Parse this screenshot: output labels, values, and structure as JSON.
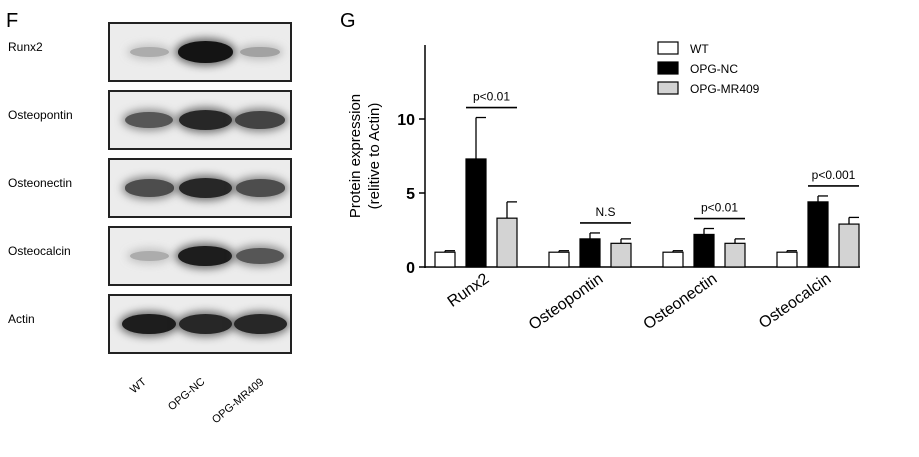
{
  "panel_f": {
    "letter": "F",
    "blots": [
      {
        "label": "Runx2",
        "intensities": [
          0.15,
          0.95,
          0.2
        ]
      },
      {
        "label": "Osteopontin",
        "intensities": [
          0.6,
          0.85,
          0.7
        ]
      },
      {
        "label": "Osteonectin",
        "intensities": [
          0.65,
          0.85,
          0.65
        ]
      },
      {
        "label": "Osteocalcin",
        "intensities": [
          0.15,
          0.9,
          0.6
        ]
      },
      {
        "label": "Actin",
        "intensities": [
          0.9,
          0.85,
          0.85
        ]
      }
    ],
    "lanes": [
      "WT",
      "OPG-NC",
      "OPG-MR409"
    ]
  },
  "panel_g": {
    "letter": "G",
    "chart_data": {
      "type": "bar",
      "categories": [
        "Runx2",
        "Osteopontin",
        "Osteonectin",
        "Osteocalcin"
      ],
      "ylabel_line1": "Protein expression",
      "ylabel_line2": "(relitive to Actin)",
      "ylim": [
        0,
        15
      ],
      "yticks": [
        0,
        5,
        10
      ],
      "series": [
        {
          "name": "WT",
          "color": "#ffffff",
          "values": [
            1.0,
            1.0,
            1.0,
            1.0
          ],
          "errors": [
            0.1,
            0.1,
            0.1,
            0.1
          ]
        },
        {
          "name": "OPG-NC",
          "color": "#000000",
          "values": [
            7.3,
            1.9,
            2.2,
            4.4
          ],
          "errors": [
            2.8,
            0.4,
            0.4,
            0.4
          ]
        },
        {
          "name": "OPG-MR409",
          "color": "#d3d3d3",
          "values": [
            3.3,
            1.6,
            1.6,
            2.9
          ],
          "errors": [
            1.1,
            0.3,
            0.3,
            0.45
          ]
        }
      ],
      "significance": [
        "p<0.01",
        "N.S",
        "p<0.01",
        "p<0.001"
      ],
      "legend_position": "top-right"
    }
  }
}
